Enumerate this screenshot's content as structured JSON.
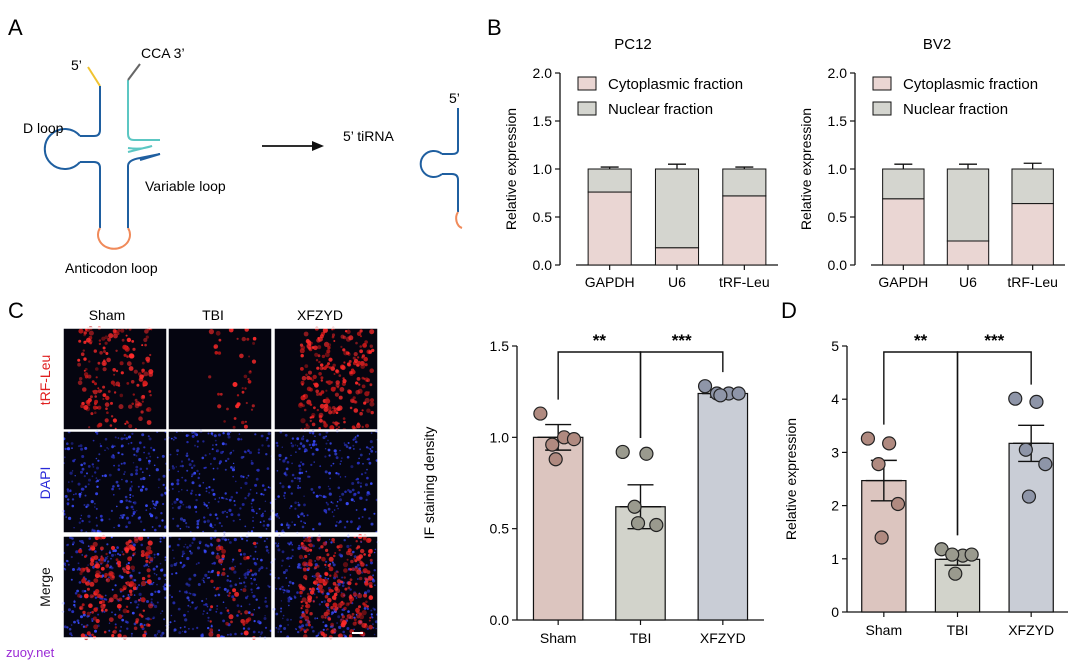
{
  "panel_labels": {
    "a": "A",
    "b": "B",
    "c": "C",
    "d": "D"
  },
  "trna": {
    "five_prime": "5’",
    "cca": "CCA 3’",
    "d_loop": "D loop",
    "variable_loop": "Variable loop",
    "anticodon_loop": "Anticodon loop",
    "tirna_label": "5’ tiRNA",
    "tirna_five_prime": "5’",
    "colors": {
      "stem": "#1f5fa0",
      "acceptor": "#5cc7c3",
      "five_end": "#f0c330",
      "cca": "#666666",
      "anticodon": "#f08a5a"
    }
  },
  "micrographs": {
    "col_headers": [
      "Sham",
      "TBI",
      "XFZYD"
    ],
    "row_labels": [
      "tRF-Leu",
      "DAPI",
      "Merge"
    ],
    "row_label_colors": [
      "#e02020",
      "#2a2ad8",
      "#111111"
    ]
  },
  "watermark": "zuoy.net",
  "chart_data": [
    {
      "type": "bar",
      "stacked": true,
      "title": "PC12",
      "ylabel": "Relative expression",
      "ylim": [
        0,
        2.0
      ],
      "yticks": [
        "0.0",
        "0.5",
        "1.0",
        "1.5",
        "2.0"
      ],
      "categories": [
        "GAPDH",
        "U6",
        "tRF-Leu"
      ],
      "series": [
        {
          "name": "Cytoplasmic fraction",
          "color": "#ead6d3",
          "values": [
            0.76,
            0.18,
            0.72
          ],
          "errors": [
            0.02,
            0.05,
            0.02
          ]
        },
        {
          "name": "Nuclear fraction",
          "color": "#d4d5cf",
          "values": [
            0.24,
            0.82,
            0.28
          ],
          "errors": [
            0.02,
            0.05,
            0.02
          ]
        }
      ],
      "legend": "top-right"
    },
    {
      "type": "bar",
      "stacked": true,
      "title": "BV2",
      "ylabel": "Relative expression",
      "ylim": [
        0,
        2.0
      ],
      "yticks": [
        "0.0",
        "0.5",
        "1.0",
        "1.5",
        "2.0"
      ],
      "categories": [
        "GAPDH",
        "U6",
        "tRF-Leu"
      ],
      "series": [
        {
          "name": "Cytoplasmic fraction",
          "color": "#ead6d3",
          "values": [
            0.69,
            0.25,
            0.64
          ],
          "errors": [
            0.05,
            0.05,
            0.06
          ]
        },
        {
          "name": "Nuclear fraction",
          "color": "#d4d5cf",
          "values": [
            0.31,
            0.75,
            0.36
          ],
          "errors": [
            0.05,
            0.05,
            0.06
          ]
        }
      ],
      "legend": "top-right"
    },
    {
      "type": "bar",
      "ylabel": "IF staining density",
      "ylim": [
        0,
        1.5
      ],
      "yticks": [
        "0.0",
        "0.5",
        "1.0",
        "1.5"
      ],
      "categories": [
        "Sham",
        "TBI",
        "XFZYD"
      ],
      "colors": [
        "#dcc5bf",
        "#d2d3cb",
        "#c9cdd6"
      ],
      "dot_colors": [
        "#b08a80",
        "#9a9a8e",
        "#8e95a8"
      ],
      "values": [
        1.0,
        0.62,
        1.24
      ],
      "errors": [
        0.07,
        0.12,
        0.02
      ],
      "points": [
        [
          1.13,
          1.0,
          0.96,
          0.99,
          0.88
        ],
        [
          0.92,
          0.91,
          0.62,
          0.52,
          0.53
        ],
        [
          1.28,
          1.24,
          1.24,
          1.24,
          1.23
        ]
      ],
      "significance": [
        {
          "from": 0,
          "to": 1,
          "label": "**"
        },
        {
          "from": 1,
          "to": 2,
          "label": "***"
        }
      ]
    },
    {
      "type": "bar",
      "ylabel": "Relative expression",
      "ylim": [
        0,
        5
      ],
      "yticks": [
        "0",
        "1",
        "2",
        "3",
        "4",
        "5"
      ],
      "categories": [
        "Sham",
        "TBI",
        "XFZYD"
      ],
      "colors": [
        "#dcc5bf",
        "#d2d3cb",
        "#c9cdd6"
      ],
      "dot_colors": [
        "#b08a80",
        "#9a9a8e",
        "#8e95a8"
      ],
      "values": [
        2.47,
        0.99,
        3.17
      ],
      "errors": [
        0.38,
        0.11,
        0.34
      ],
      "points": [
        [
          3.26,
          3.17,
          2.78,
          2.03,
          1.4
        ],
        [
          1.18,
          1.06,
          1.08,
          1.08,
          0.72
        ],
        [
          4.01,
          3.95,
          3.05,
          2.78,
          2.17
        ]
      ],
      "significance": [
        {
          "from": 0,
          "to": 1,
          "label": "**"
        },
        {
          "from": 1,
          "to": 2,
          "label": "***"
        }
      ]
    }
  ]
}
